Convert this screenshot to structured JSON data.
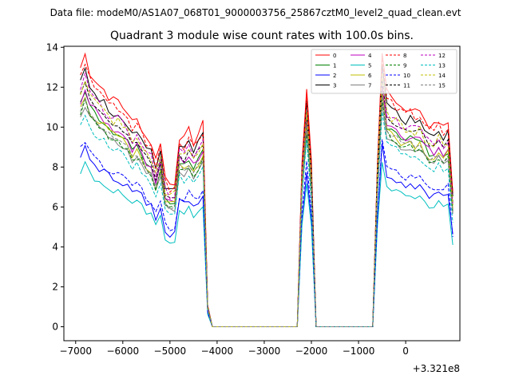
{
  "chart_data": {
    "type": "line",
    "suptitle": "Data file: modeM0/AS1A07_068T01_9000003756_25867cztM0_level2_quad_clean.evt",
    "title": "Quadrant 3 module wise count rates with 100.0s bins.",
    "xlabel": "",
    "ylabel": "",
    "x_offset_label": "+3.321e8",
    "xlim": [
      -7250,
      1150
    ],
    "ylim": [
      -0.7,
      14.05
    ],
    "x_ticks": [
      -7000,
      -6000,
      -5000,
      -4000,
      -3000,
      -2000,
      -1000,
      0
    ],
    "x_tick_labels": [
      "−7000",
      "−6000",
      "−5000",
      "−4000",
      "−3000",
      "−2000",
      "−1000",
      "0"
    ],
    "y_ticks": [
      0,
      2,
      4,
      6,
      8,
      10,
      12,
      14
    ],
    "y_tick_labels": [
      "0",
      "2",
      "4",
      "6",
      "8",
      "10",
      "12",
      "14"
    ],
    "legend_position": "top-right",
    "base": [
      11.8,
      12.4,
      11.6,
      11.3,
      11.0,
      10.8,
      10.5,
      10.3,
      10.3,
      10.0,
      9.8,
      9.3,
      9.4,
      9.1,
      8.6,
      8.4,
      7.6,
      8.5,
      6.8,
      6.5,
      6.6,
      8.7,
      8.5,
      8.9,
      8.4,
      8.8,
      9.2,
      1.0,
      0,
      0,
      0,
      0,
      0,
      0,
      0,
      0,
      0,
      0,
      0,
      0,
      0,
      0,
      0,
      0,
      0,
      0,
      0,
      7.5,
      10.8,
      7.5,
      0,
      0,
      0,
      0,
      0,
      0,
      0,
      0,
      0,
      0,
      0,
      0,
      0,
      7.5,
      12.6,
      10.6,
      10.5,
      10.3,
      10.0,
      9.9,
      10.0,
      9.8,
      9.9,
      9.5,
      9.2,
      9.1,
      9.4,
      9.0,
      9.3,
      6.2
    ],
    "series": [
      {
        "name": "0",
        "color": "#ff0000",
        "dash": false,
        "scale": 1.1,
        "noise": 0.5
      },
      {
        "name": "1",
        "color": "#008000",
        "dash": false,
        "scale": 0.95,
        "noise": 0.4
      },
      {
        "name": "2",
        "color": "#0000ff",
        "dash": false,
        "scale": 0.72,
        "noise": 0.4
      },
      {
        "name": "3",
        "color": "#000000",
        "dash": false,
        "scale": 1.04,
        "noise": 0.4
      },
      {
        "name": "4",
        "color": "#bf00bf",
        "dash": false,
        "scale": 0.96,
        "noise": 0.4
      },
      {
        "name": "5",
        "color": "#00bfbf",
        "dash": false,
        "scale": 0.66,
        "noise": 0.35
      },
      {
        "name": "6",
        "color": "#bfbf00",
        "dash": false,
        "scale": 0.93,
        "noise": 0.45
      },
      {
        "name": "7",
        "color": "#808080",
        "dash": false,
        "scale": 0.9,
        "noise": 0.35
      },
      {
        "name": "8",
        "color": "#ff0000",
        "dash": true,
        "scale": 1.07,
        "noise": 0.5
      },
      {
        "name": "9",
        "color": "#008000",
        "dash": true,
        "scale": 0.91,
        "noise": 0.4
      },
      {
        "name": "10",
        "color": "#0000ff",
        "dash": true,
        "scale": 0.75,
        "noise": 0.4
      },
      {
        "name": "11",
        "color": "#000000",
        "dash": true,
        "scale": 0.99,
        "noise": 0.4
      },
      {
        "name": "12",
        "color": "#bf00bf",
        "dash": true,
        "scale": 1.01,
        "noise": 0.45
      },
      {
        "name": "13",
        "color": "#00bfbf",
        "dash": true,
        "scale": 0.86,
        "noise": 0.35
      },
      {
        "name": "14",
        "color": "#bfbf00",
        "dash": true,
        "scale": 1.0,
        "noise": 0.5
      },
      {
        "name": "15",
        "color": "#808080",
        "dash": true,
        "scale": 0.92,
        "noise": 0.35
      }
    ],
    "x_start": -6900,
    "x_step": 100
  }
}
